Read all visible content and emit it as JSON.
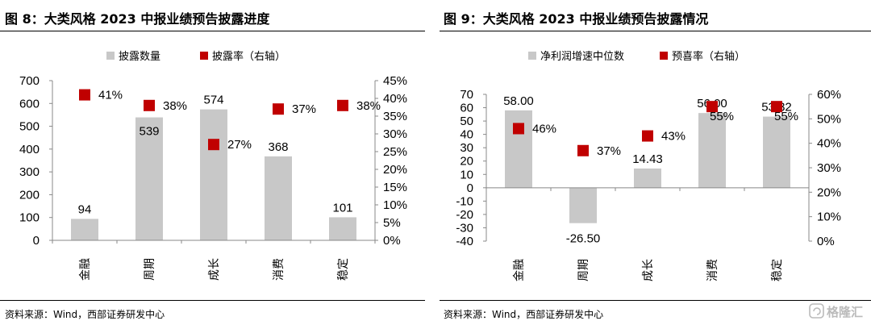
{
  "left": {
    "title": "图 8：大类风格 2023 中报业绩预告披露进度",
    "source": "资料来源：Wind，西部证券研发中心"
  },
  "right": {
    "title": "图 9：大类风格 2023 中报业绩预告披露情况",
    "source": "资料来源：Wind，西部证券研发中心"
  },
  "watermark": {
    "text": "格隆汇"
  },
  "chart_data": [
    {
      "type": "bar",
      "categories": [
        "金融",
        "周期",
        "成长",
        "消费",
        "稳定"
      ],
      "series": [
        {
          "name": "披露数量",
          "kind": "bar",
          "axis": "left",
          "color": "#c8c8c8",
          "values": [
            94,
            539,
            574,
            368,
            101
          ],
          "labels": [
            "94",
            "539",
            "574",
            "368",
            "101"
          ]
        },
        {
          "name": "披露率（右轴）",
          "kind": "marker",
          "axis": "right",
          "color": "#c00000",
          "values": [
            0.41,
            0.38,
            0.27,
            0.37,
            0.38
          ],
          "labels": [
            "41%",
            "38%",
            "27%",
            "37%",
            "38%"
          ]
        }
      ],
      "ylim": [
        0,
        700
      ],
      "yticks": [
        "700",
        "600",
        "500",
        "400",
        "300",
        "200",
        "100",
        "0"
      ],
      "y2lim": [
        0,
        0.45
      ],
      "y2ticks": [
        "45%",
        "40%",
        "35%",
        "30%",
        "25%",
        "20%",
        "15%",
        "10%",
        "5%",
        "0%"
      ],
      "legend": "top-center",
      "grid": false
    },
    {
      "type": "bar",
      "categories": [
        "金融",
        "周期",
        "成长",
        "消费",
        "稳定"
      ],
      "series": [
        {
          "name": "净利润增速中位数",
          "kind": "bar",
          "axis": "left",
          "color": "#c8c8c8",
          "values": [
            58.0,
            -26.5,
            14.43,
            56.0,
            53.32
          ],
          "labels": [
            "58.00",
            "-26.50",
            "14.43",
            "56.00",
            "53.32"
          ]
        },
        {
          "name": "预喜率（右轴）",
          "kind": "marker",
          "axis": "right",
          "color": "#c00000",
          "values": [
            0.46,
            0.37,
            0.43,
            0.55,
            0.55
          ],
          "labels": [
            "46%",
            "37%",
            "43%",
            "55%",
            "55%"
          ]
        }
      ],
      "ylim": [
        -40,
        70
      ],
      "yticks": [
        "70",
        "60",
        "50",
        "40",
        "30",
        "20",
        "10",
        "0",
        "-10",
        "-20",
        "-30",
        "-40"
      ],
      "y2lim": [
        0,
        0.6
      ],
      "y2ticks": [
        "60%",
        "50%",
        "40%",
        "30%",
        "20%",
        "10%",
        "0%"
      ],
      "legend": "top-center",
      "grid": false
    }
  ]
}
